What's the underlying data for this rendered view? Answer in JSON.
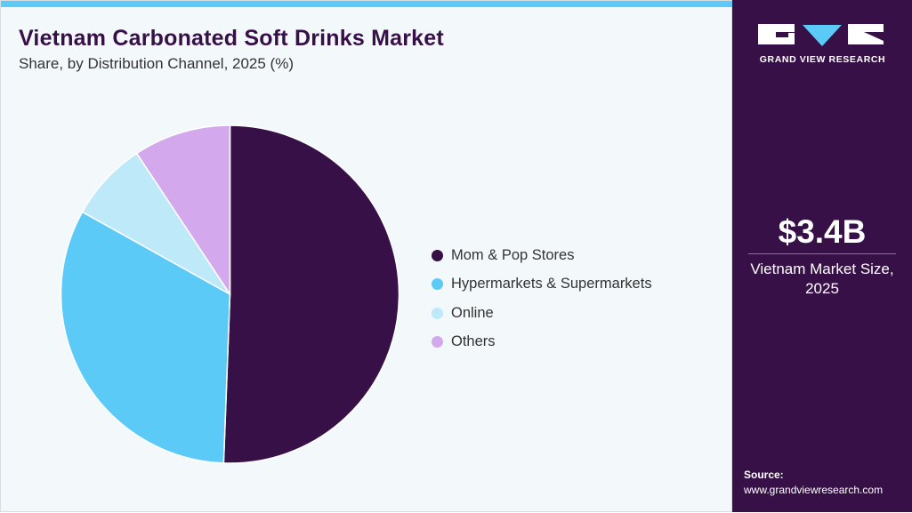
{
  "header": {
    "title": "Vietnam Carbonated Soft Drinks Market",
    "subtitle": "Share, by Distribution Channel, 2025 (%)"
  },
  "chart_data": {
    "type": "pie",
    "title": "Vietnam Carbonated Soft Drinks Market",
    "subtitle": "Share, by Distribution Channel, 2025 (%)",
    "categories": [
      "Mom & Pop Stores",
      "Hypermarkets & Supermarkets",
      "Online",
      "Others"
    ],
    "values": [
      50.6,
      32.5,
      7.6,
      9.3
    ],
    "colors": [
      "#371047",
      "#5ccaf6",
      "#bde9f9",
      "#d4a8ec"
    ],
    "start": "12 o'clock, clockwise",
    "legend": "right"
  },
  "sidebar": {
    "logo_text": "GRAND VIEW RESEARCH",
    "market_value": "$3.4B",
    "market_label": "Vietnam Market Size, 2025",
    "source_label": "Source:",
    "source_url": "www.grandviewresearch.com"
  }
}
